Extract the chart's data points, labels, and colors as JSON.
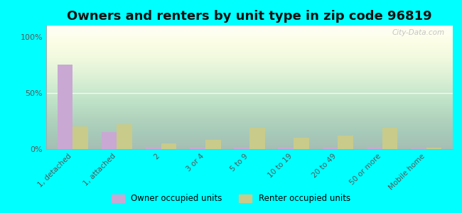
{
  "title": "Owners and renters by unit type in zip code 96819",
  "categories": [
    "1, detached",
    "1, attached",
    "2",
    "3 or 4",
    "5 to 9",
    "10 to 19",
    "20 to 49",
    "50 or more",
    "Mobile home"
  ],
  "owner_values": [
    75,
    15,
    2,
    1.5,
    1,
    1,
    1.5,
    2,
    0.5
  ],
  "renter_values": [
    20,
    22,
    5,
    8,
    19,
    10,
    12,
    19,
    1
  ],
  "owner_color": "#c9a8d4",
  "renter_color": "#c8cb8a",
  "owner_label": "Owner occupied units",
  "renter_label": "Renter occupied units",
  "yticks": [
    0,
    50,
    100
  ],
  "ytick_labels": [
    "0%",
    "50%",
    "100%"
  ],
  "ylim": [
    0,
    110
  ],
  "bg_color": "#00ffff",
  "title_fontsize": 13,
  "watermark": "City-Data.com"
}
